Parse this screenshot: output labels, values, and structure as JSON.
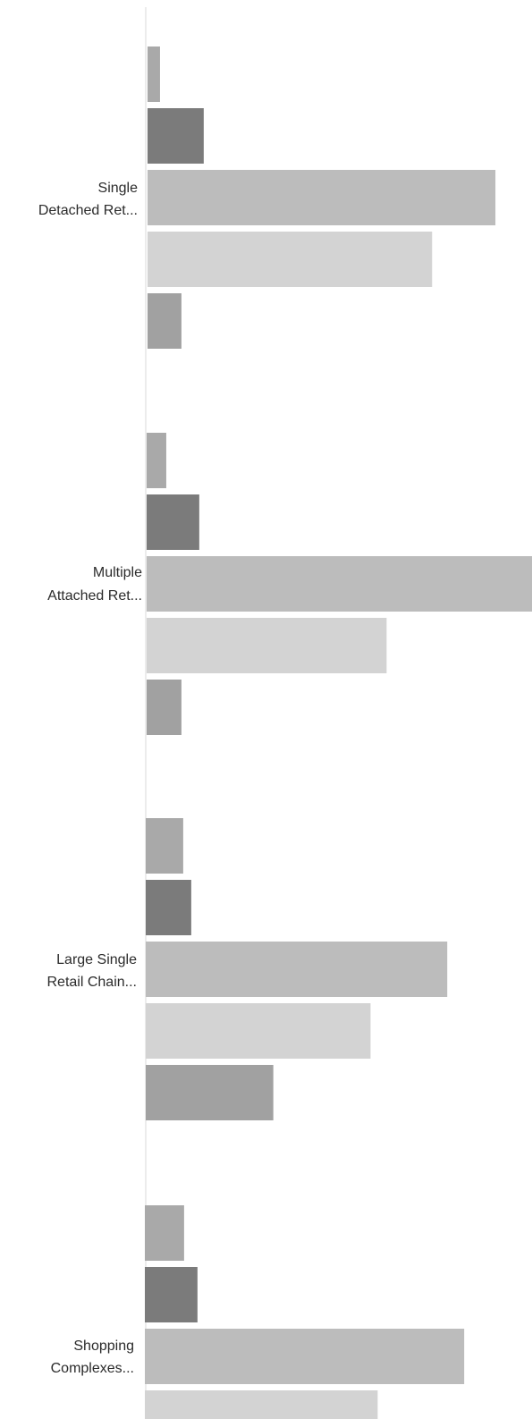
{
  "chart_data": {
    "type": "bar",
    "orientation": "horizontal",
    "categories": [
      [
        "Single",
        "Detached Ret..."
      ],
      [
        "Multiple",
        "Attached Ret..."
      ],
      [
        "Large Single",
        "Retail Chain..."
      ],
      [
        "Shopping",
        "Complexes..."
      ]
    ],
    "series": [
      {
        "values": [
          14,
          22,
          42,
          44
        ],
        "color": "#a9a9a9"
      },
      {
        "values": [
          63,
          59,
          51,
          59
        ],
        "color": "#7b7b7b"
      },
      {
        "values": [
          390,
          432,
          338,
          358
        ],
        "color": "#bcbcbc"
      },
      {
        "values": [
          319,
          269,
          252,
          261
        ],
        "color": "#d3d3d3"
      },
      {
        "values": [
          38,
          39,
          143,
          null
        ],
        "color": "#a1a1a1"
      }
    ],
    "xlim": [
      0,
      432
    ],
    "grid": false,
    "legend": "none"
  }
}
